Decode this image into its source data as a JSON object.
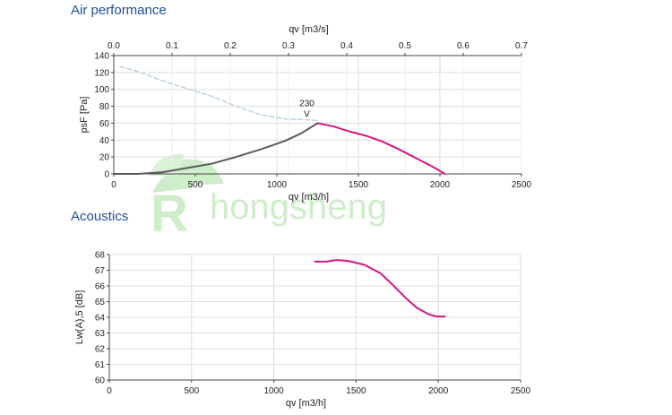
{
  "sections": {
    "air_title": "Air performance",
    "acoustics_title": "Acoustics"
  },
  "watermark": "hongsheng",
  "colors": {
    "section_title": "#1f4e9a",
    "curve_active": "#d4177f",
    "curve_system": "#5a5a5a",
    "curve_dashed": "#bcd2e4",
    "grid": "#dddddd",
    "watermark": "#c9ecc4"
  },
  "chart_data": [
    {
      "type": "line",
      "title": "Air performance",
      "xlabel": "qv [m3/h]",
      "x2label": "qv [m3/s]",
      "ylabel": "psF [Pa]",
      "xlim": [
        0,
        2500
      ],
      "x2lim": [
        0,
        0.7
      ],
      "ylim": [
        0,
        140
      ],
      "xticks": [
        "0",
        "500",
        "1000",
        "1500",
        "2000",
        "2500"
      ],
      "x2ticks": [
        "0.0",
        "0.1",
        "0.2",
        "0.3",
        "0.4",
        "0.5",
        "0.6",
        "0.7"
      ],
      "yticks": [
        "0",
        "20",
        "40",
        "60",
        "80",
        "100",
        "120",
        "140"
      ],
      "grid": true,
      "annotation": {
        "text": "230",
        "marker": "V",
        "x": 1250,
        "y": 60
      },
      "series": [
        {
          "style": "dashed",
          "color": "#bcd2e4",
          "x": [
            40,
            150,
            300,
            450,
            600,
            750,
            900,
            1050,
            1200,
            1260
          ],
          "y": [
            127,
            121,
            110,
            101,
            92,
            80,
            70,
            65,
            64,
            63
          ]
        },
        {
          "style": "solid",
          "color": "#5a5a5a",
          "x": [
            0,
            150,
            300,
            450,
            600,
            750,
            900,
            1050,
            1150,
            1250
          ],
          "y": [
            0,
            0,
            2,
            7,
            12,
            20,
            29,
            39,
            48,
            60
          ]
        },
        {
          "style": "solid",
          "color": "#d4177f",
          "x": [
            1250,
            1350,
            1450,
            1550,
            1650,
            1750,
            1850,
            1950,
            2030
          ],
          "y": [
            60,
            56,
            50,
            45,
            38,
            29,
            19,
            9,
            0
          ]
        }
      ]
    },
    {
      "type": "line",
      "title": "Acoustics",
      "xlabel": "qv [m3/h]",
      "ylabel": "Lw(A),5 [dB]",
      "xlim": [
        0,
        2500
      ],
      "ylim": [
        60,
        68
      ],
      "xticks": [
        "0",
        "500",
        "1000",
        "1500",
        "2000",
        "2500"
      ],
      "yticks": [
        "60",
        "61",
        "62",
        "63",
        "64",
        "65",
        "66",
        "67",
        "68"
      ],
      "grid": true,
      "series": [
        {
          "style": "solid",
          "color": "#d4177f",
          "x": [
            1250,
            1320,
            1380,
            1450,
            1550,
            1650,
            1720,
            1800,
            1870,
            1940,
            1990,
            2040
          ],
          "y": [
            67.55,
            67.55,
            67.65,
            67.6,
            67.35,
            66.8,
            66.1,
            65.25,
            64.6,
            64.2,
            64.05,
            64.05
          ]
        }
      ]
    }
  ]
}
